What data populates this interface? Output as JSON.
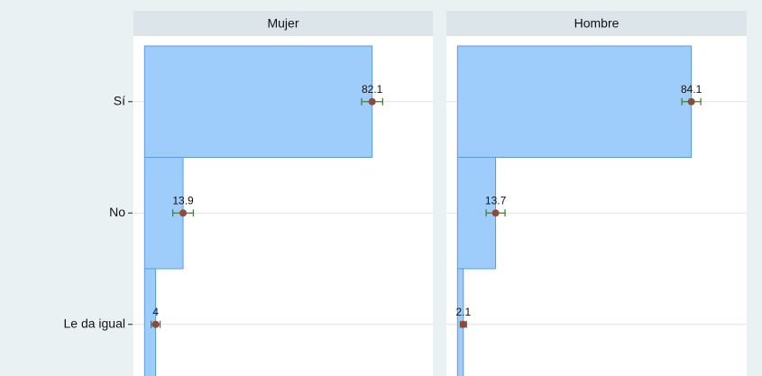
{
  "chart_data": {
    "type": "bar",
    "orientation": "horizontal",
    "categories": [
      "Sí",
      "No",
      "Le da igual"
    ],
    "panels": [
      {
        "title": "Mujer",
        "values": [
          82.1,
          13.9,
          4
        ],
        "errors": [
          3.8,
          3.7,
          1.6
        ]
      },
      {
        "title": "Hombre",
        "values": [
          84.1,
          13.7,
          2.1
        ],
        "errors": [
          3.4,
          3.4,
          1.1
        ]
      }
    ],
    "xlim": [
      -4,
      104
    ],
    "grid": true,
    "color": "#9fcdfb",
    "edge_color": "#5a9be0",
    "marker_color": "#8e4a3a",
    "error_color": "#4d7a3a"
  }
}
